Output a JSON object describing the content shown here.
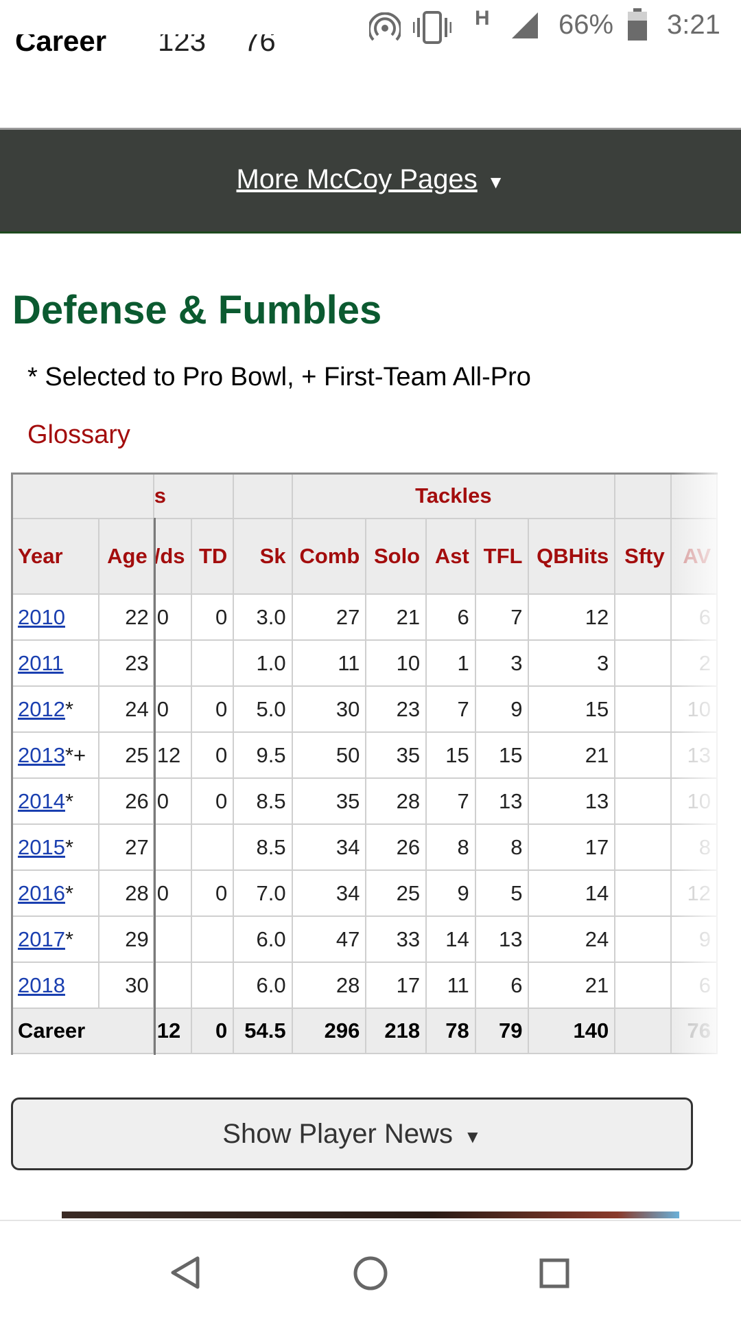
{
  "status_bar": {
    "network": "H",
    "battery_percent": "66%",
    "time": "3:21",
    "icons": [
      "hotspot-icon",
      "vibrate-icon",
      "signal-icon",
      "battery-icon"
    ]
  },
  "top_career_row": {
    "label": "Career",
    "value_1": "123",
    "value_2": "76"
  },
  "more_pages": {
    "label": "More McCoy Pages",
    "arrow": "▼"
  },
  "section": {
    "title": "Defense & Fumbles",
    "note": "* Selected to Pro Bowl, + First-Team All-Pro",
    "glossary": "Glossary"
  },
  "table": {
    "group_headers": {
      "fumbles_cut": "s",
      "tackles": "Tackles"
    },
    "columns": [
      "Year",
      "Age",
      "Yds",
      "TD",
      "Sk",
      "Comb",
      "Solo",
      "Ast",
      "TFL",
      "QBHits",
      "Sfty",
      "AV"
    ],
    "column_display": [
      "Year",
      "Age",
      "/ds",
      "TD",
      "Sk",
      "Comb",
      "Solo",
      "Ast",
      "TFL",
      "QBHits",
      "Sfty",
      "AV"
    ],
    "rows": [
      {
        "year": "2010",
        "mark": "",
        "age": "22",
        "yds": "0",
        "td": "0",
        "sk": "3.0",
        "comb": "27",
        "solo": "21",
        "ast": "6",
        "tfl": "7",
        "qbhits": "12",
        "sfty": "",
        "av": "6"
      },
      {
        "year": "2011",
        "mark": "",
        "age": "23",
        "yds": "",
        "td": "",
        "sk": "1.0",
        "comb": "11",
        "solo": "10",
        "ast": "1",
        "tfl": "3",
        "qbhits": "3",
        "sfty": "",
        "av": "2"
      },
      {
        "year": "2012",
        "mark": "*",
        "age": "24",
        "yds": "0",
        "td": "0",
        "sk": "5.0",
        "comb": "30",
        "solo": "23",
        "ast": "7",
        "tfl": "9",
        "qbhits": "15",
        "sfty": "",
        "av": "10"
      },
      {
        "year": "2013",
        "mark": "*+",
        "age": "25",
        "yds": "12",
        "td": "0",
        "sk": "9.5",
        "comb": "50",
        "solo": "35",
        "ast": "15",
        "tfl": "15",
        "qbhits": "21",
        "sfty": "",
        "av": "13"
      },
      {
        "year": "2014",
        "mark": "*",
        "age": "26",
        "yds": "0",
        "td": "0",
        "sk": "8.5",
        "comb": "35",
        "solo": "28",
        "ast": "7",
        "tfl": "13",
        "qbhits": "13",
        "sfty": "",
        "av": "10"
      },
      {
        "year": "2015",
        "mark": "*",
        "age": "27",
        "yds": "",
        "td": "",
        "sk": "8.5",
        "comb": "34",
        "solo": "26",
        "ast": "8",
        "tfl": "8",
        "qbhits": "17",
        "sfty": "",
        "av": "8"
      },
      {
        "year": "2016",
        "mark": "*",
        "age": "28",
        "yds": "0",
        "td": "0",
        "sk": "7.0",
        "comb": "34",
        "solo": "25",
        "ast": "9",
        "tfl": "5",
        "qbhits": "14",
        "sfty": "",
        "av": "12"
      },
      {
        "year": "2017",
        "mark": "*",
        "age": "29",
        "yds": "",
        "td": "",
        "sk": "6.0",
        "comb": "47",
        "solo": "33",
        "ast": "14",
        "tfl": "13",
        "qbhits": "24",
        "sfty": "",
        "av": "9"
      },
      {
        "year": "2018",
        "mark": "",
        "age": "30",
        "yds": "",
        "td": "",
        "sk": "6.0",
        "comb": "28",
        "solo": "17",
        "ast": "11",
        "tfl": "6",
        "qbhits": "21",
        "sfty": "",
        "av": "6"
      }
    ],
    "career": {
      "label": "Career",
      "yds": "12",
      "td": "0",
      "sk": "54.5",
      "comb": "296",
      "solo": "218",
      "ast": "78",
      "tfl": "79",
      "qbhits": "140",
      "sfty": "",
      "av": "76"
    }
  },
  "news_button": {
    "label": "Show Player News",
    "arrow": "▼"
  },
  "colors": {
    "heading_green": "#0b5a30",
    "header_red": "#a30d0d",
    "link_blue": "#1a3fb0",
    "bar_dark": "#3b3f3b"
  }
}
